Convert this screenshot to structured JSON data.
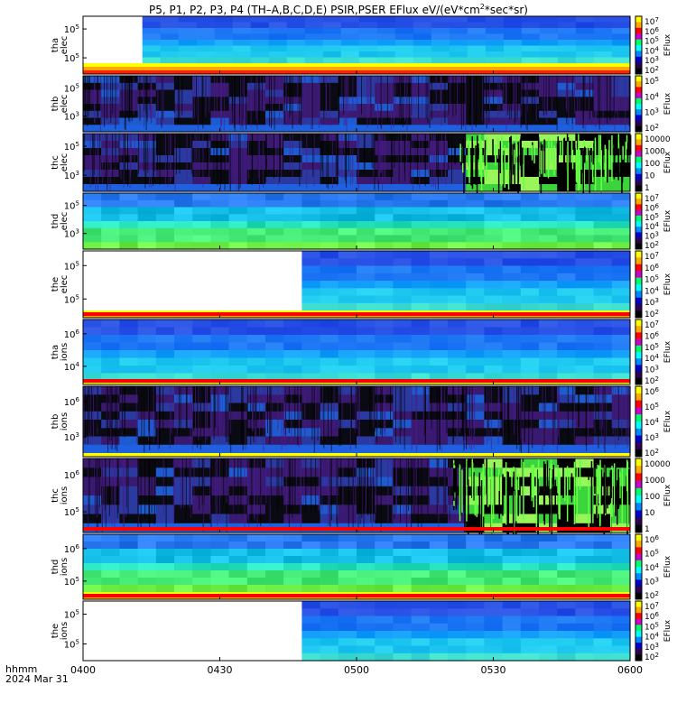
{
  "title_prefix": "P5, P1, P2, P3, P4 (TH–A,B,C,D,E) PSIR,PSER EFlux eV/(eV*cm",
  "title_exp": "2",
  "title_suffix": "*sec*sr)",
  "time_label": "hhmm",
  "date_label": "2024 Mar 31",
  "colorbar_label": "EFlux",
  "colors": {
    "white_gap": "#ffffff",
    "fill_bg": "#3b0b6d"
  },
  "chart_data": {
    "type": "heatmap",
    "x_ticks": [
      "0400",
      "0430",
      "0500",
      "0530",
      "0600"
    ],
    "x_range": [
      "04:00",
      "06:00"
    ],
    "panels": [
      {
        "id": "tha-elec",
        "ylabel": [
          "tha",
          "elec"
        ],
        "yticks": [
          "10^5",
          "10^5"
        ],
        "cbar_ticks": [
          "10^7",
          "10^6",
          "10^5",
          "10^4",
          "10^3",
          "10^2"
        ],
        "data_start": "04:13",
        "style": "smooth",
        "bottom_bands": [
          "yellow",
          "orange",
          "red"
        ]
      },
      {
        "id": "thb-elec",
        "ylabel": [
          "thb",
          "elec"
        ],
        "yticks": [
          "10^5",
          "10^3"
        ],
        "cbar_ticks": [
          "10^5",
          "10^4",
          "10^3",
          "10^2"
        ],
        "data_start": "04:00",
        "style": "noisy",
        "bottom_bands": []
      },
      {
        "id": "thc-elec",
        "ylabel": [
          "thc",
          "elec"
        ],
        "yticks": [
          "10^5",
          "10^3"
        ],
        "cbar_ticks": [
          "10000",
          "1000",
          "100",
          "10",
          "1"
        ],
        "data_start": "04:00",
        "style": "noisy",
        "bottom_bands": [],
        "green_start": "05:21"
      },
      {
        "id": "thd-elec",
        "ylabel": [
          "thd",
          "elec"
        ],
        "yticks": [
          "10^5",
          "10^3"
        ],
        "cbar_ticks": [
          "10^7",
          "10^6",
          "10^5",
          "10^4",
          "10^3",
          "10^2"
        ],
        "data_start": "04:00",
        "style": "green",
        "bottom_bands": []
      },
      {
        "id": "the-elec",
        "ylabel": [
          "the",
          "elec"
        ],
        "yticks": [
          "10^5",
          "10^5"
        ],
        "cbar_ticks": [
          "10^7",
          "10^6",
          "10^5",
          "10^4",
          "10^3",
          "10^2"
        ],
        "data_start": "04:48",
        "style": "smooth",
        "bottom_bands": [
          "yellow",
          "orange"
        ],
        "bars_below": true
      },
      {
        "id": "tha-ions",
        "ylabel": [
          "tha",
          "ions"
        ],
        "yticks": [
          "10^6",
          "10^4"
        ],
        "cbar_ticks": [
          "10^7",
          "10^6",
          "10^5",
          "10^4",
          "10^3",
          "10^2"
        ],
        "data_start": "04:00",
        "style": "smooth",
        "bottom_bands": [
          "yellow"
        ],
        "bars_below": true
      },
      {
        "id": "thb-ions",
        "ylabel": [
          "thb",
          "ions"
        ],
        "yticks": [
          "10^6",
          "10^3"
        ],
        "cbar_ticks": [
          "10^6",
          "10^5",
          "10^4",
          "10^3",
          "10^2"
        ],
        "data_start": "04:00",
        "style": "noisy",
        "bottom_bands": [
          "yellow"
        ]
      },
      {
        "id": "thc-ions",
        "ylabel": [
          "thc",
          "ions"
        ],
        "yticks": [
          "10^6",
          "10^5"
        ],
        "cbar_ticks": [
          "10000",
          "1000",
          "100",
          "10",
          "1"
        ],
        "data_start": "04:00",
        "style": "noisy",
        "bottom_bands": [],
        "green_start": "05:21",
        "bars_below": true
      },
      {
        "id": "thd-ions",
        "ylabel": [
          "thd",
          "ions"
        ],
        "yticks": [
          "10^6",
          "10^5"
        ],
        "cbar_ticks": [
          "10^6",
          "10^5",
          "10^4",
          "10^3",
          "10^2"
        ],
        "data_start": "04:00",
        "style": "green",
        "bottom_bands": [
          "yellow",
          "orange"
        ],
        "bars_below": true
      },
      {
        "id": "the-ions",
        "ylabel": [
          "the",
          "ions"
        ],
        "yticks": [
          "10^5",
          "10^5"
        ],
        "cbar_ticks": [
          "10^7",
          "10^6",
          "10^5",
          "10^4",
          "10^3",
          "10^2"
        ],
        "data_start": "04:48",
        "style": "smooth",
        "bottom_bands": []
      }
    ]
  }
}
